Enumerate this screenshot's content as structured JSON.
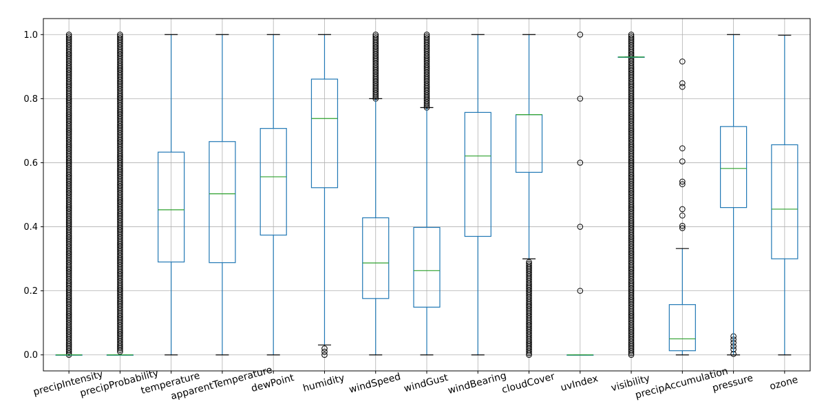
{
  "chart_data": {
    "type": "box",
    "ylim": [
      -0.05,
      1.05
    ],
    "yticks": [
      0.0,
      0.2,
      0.4,
      0.6,
      0.8,
      1.0
    ],
    "ytick_labels": [
      "0.0",
      "0.2",
      "0.4",
      "0.6",
      "0.8",
      "1.0"
    ],
    "grid": true,
    "colors": {
      "box": "#1f77b4",
      "median": "#2ca02c",
      "whisker": "#1f77b4",
      "cap": "#000000",
      "flier": "#000000",
      "grid": "#b0b0b0"
    },
    "categories": [
      "precipIntensity",
      "precipProbability",
      "temperature",
      "apparentTemperature",
      "dewPoint",
      "humidity",
      "windSpeed",
      "windGust",
      "windBearing",
      "cloudCover",
      "uvIndex",
      "visibility",
      "precipAccumulation",
      "pressure",
      "ozone"
    ],
    "boxes": [
      {
        "name": "precipIntensity",
        "whislo": 0.0,
        "q1": 0.0,
        "med": 0.0,
        "q3": 0.0,
        "whishi": 0.0,
        "flier_range": [
          0.0,
          1.0
        ]
      },
      {
        "name": "precipProbability",
        "whislo": 0.0,
        "q1": 0.0,
        "med": 0.0,
        "q3": 0.0,
        "whishi": 0.0,
        "flier_range": [
          0.01,
          1.0
        ]
      },
      {
        "name": "temperature",
        "whislo": 0.0,
        "q1": 0.29,
        "med": 0.453,
        "q3": 0.633,
        "whishi": 1.0,
        "fliers": []
      },
      {
        "name": "apparentTemperature",
        "whislo": 0.0,
        "q1": 0.288,
        "med": 0.503,
        "q3": 0.666,
        "whishi": 1.0,
        "fliers": []
      },
      {
        "name": "dewPoint",
        "whislo": 0.0,
        "q1": 0.374,
        "med": 0.556,
        "q3": 0.707,
        "whishi": 1.0,
        "fliers": []
      },
      {
        "name": "humidity",
        "whislo": 0.031,
        "q1": 0.522,
        "med": 0.738,
        "q3": 0.861,
        "whishi": 1.0,
        "fliers": [
          0.0,
          0.01,
          0.02
        ]
      },
      {
        "name": "windSpeed",
        "whislo": 0.0,
        "q1": 0.176,
        "med": 0.287,
        "q3": 0.428,
        "whishi": 0.8,
        "flier_range": [
          0.8,
          1.0
        ]
      },
      {
        "name": "windGust",
        "whislo": 0.0,
        "q1": 0.149,
        "med": 0.263,
        "q3": 0.398,
        "whishi": 0.772,
        "flier_range": [
          0.772,
          1.0
        ]
      },
      {
        "name": "windBearing",
        "whislo": 0.0,
        "q1": 0.37,
        "med": 0.621,
        "q3": 0.757,
        "whishi": 1.0,
        "fliers": []
      },
      {
        "name": "cloudCover",
        "whislo": 0.3,
        "q1": 0.57,
        "med": 0.75,
        "q3": 0.75,
        "whishi": 1.0,
        "flier_range": [
          0.0,
          0.29
        ]
      },
      {
        "name": "uvIndex",
        "whislo": 0.0,
        "q1": 0.0,
        "med": 0.0,
        "q3": 0.0,
        "whishi": 0.0,
        "fliers": [
          0.2,
          0.4,
          0.6,
          0.8,
          1.0
        ]
      },
      {
        "name": "visibility",
        "whislo": 0.93,
        "q1": 0.93,
        "med": 0.93,
        "q3": 0.93,
        "whishi": 0.93,
        "flier_range": [
          0.0,
          1.0
        ]
      },
      {
        "name": "precipAccumulation",
        "whislo": 0.0,
        "q1": 0.013,
        "med": 0.05,
        "q3": 0.157,
        "whishi": 0.332,
        "fliers": [
          0.396,
          0.403,
          0.435,
          0.455,
          0.533,
          0.541,
          0.604,
          0.645,
          0.837,
          0.848,
          0.916
        ]
      },
      {
        "name": "pressure",
        "whislo": 0.0,
        "q1": 0.46,
        "med": 0.582,
        "q3": 0.713,
        "whishi": 1.0,
        "fliers": [
          0.003,
          0.017,
          0.027,
          0.038,
          0.048,
          0.058
        ]
      },
      {
        "name": "ozone",
        "whislo": 0.0,
        "q1": 0.3,
        "med": 0.455,
        "q3": 0.656,
        "whishi": 0.998,
        "fliers": []
      }
    ]
  }
}
